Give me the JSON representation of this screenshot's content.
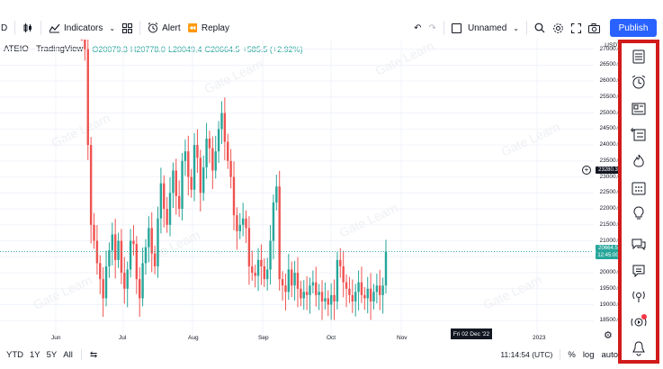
{
  "toolbar": {
    "indicators_label": "Indicators",
    "alert_label": "Alert",
    "replay_label": "Replay",
    "layout_name": "Unnamed",
    "publish_label": "Publish",
    "interval_fragment": "D"
  },
  "legend": {
    "symbol": "ATEIO · TradingView",
    "open": "O20079.3",
    "high": "H20778.0",
    "low": "L20049.4",
    "close": "C20664.5",
    "change": "+585.5 (+2.92%)"
  },
  "price_axis": {
    "currency": "USDT",
    "ticks": [
      "27000.0",
      "26500.0",
      "26000.0",
      "25500.0",
      "25000.0",
      "24500.0",
      "24000.0",
      "23500.0",
      "23000.0",
      "22500.0",
      "22000.0",
      "21500.0",
      "21000.0",
      "20500.0",
      "20000.0",
      "19500.0",
      "19000.0",
      "18500.0"
    ],
    "crosshair_price": "23280.3",
    "last_price": "20664.5",
    "countdown": "12:45:00"
  },
  "time_axis": {
    "ticks": [
      "Jun",
      "Jul",
      "Aug",
      "Sep",
      "Oct",
      "Nov",
      "2023"
    ],
    "crosshair_date": "Fri 02 Dec '22"
  },
  "bottom_bar": {
    "ranges": [
      "YTD",
      "1Y",
      "5Y",
      "All"
    ],
    "clock": "11:14:54 (UTC)",
    "percent_label": "%",
    "log_label": "log",
    "auto_label": "auto"
  },
  "watermark": "Gate Learn",
  "colors": {
    "up": "#26a69a",
    "down": "#ef5350",
    "accent": "#2962ff",
    "highlight_border": "#d11a1a"
  },
  "sidebar_icons": [
    "watchlist-icon",
    "alarm-clock-icon",
    "news-icon",
    "data-window-icon",
    "hotlist-icon",
    "calendar-icon",
    "ideas-icon",
    "chats-icon",
    "streams-icon",
    "broadcast-icon",
    "live-stream-icon",
    "notifications-icon"
  ],
  "chart_data": {
    "type": "candlestick",
    "title": "",
    "xlabel": "",
    "ylabel": "",
    "ylim": [
      18000,
      27300
    ],
    "last_close": 20664.5,
    "x_labels": [
      "Jun",
      "Jul",
      "Aug",
      "Sep",
      "Oct",
      "Nov",
      "2023"
    ],
    "note_ohlc": "O20079.3 H20778.0 L20049.4 C20664.5",
    "closes": [
      29500,
      27000,
      24000,
      21500,
      21000,
      20300,
      19800,
      19200,
      20200,
      20700,
      21200,
      20400,
      21000,
      20000,
      19500,
      20100,
      21000,
      20900,
      19800,
      19200,
      20300,
      20800,
      21400,
      20600,
      20200,
      21700,
      22800,
      22000,
      21500,
      22500,
      23200,
      22400,
      22000,
      23500,
      23800,
      23000,
      22600,
      24000,
      23600,
      22500,
      23300,
      24200,
      23900,
      23200,
      23800,
      24500,
      25000,
      24100,
      23500,
      23000,
      21800,
      21300,
      21500,
      21700,
      21400,
      20200,
      20000,
      19900,
      20400,
      20200,
      19800,
      20100,
      21000,
      22200,
      22700,
      19800,
      19600,
      19400,
      20100,
      19600,
      20000,
      19500,
      19200,
      19400,
      19300,
      19600,
      19700,
      19300,
      19400,
      19100,
      19200,
      19000,
      19300,
      19100,
      20400,
      20200,
      19700,
      19500,
      19300,
      19100,
      19400,
      19700,
      19300,
      19200,
      19500,
      19100,
      19400,
      19600,
      19300,
      19600,
      20664.5
    ]
  }
}
